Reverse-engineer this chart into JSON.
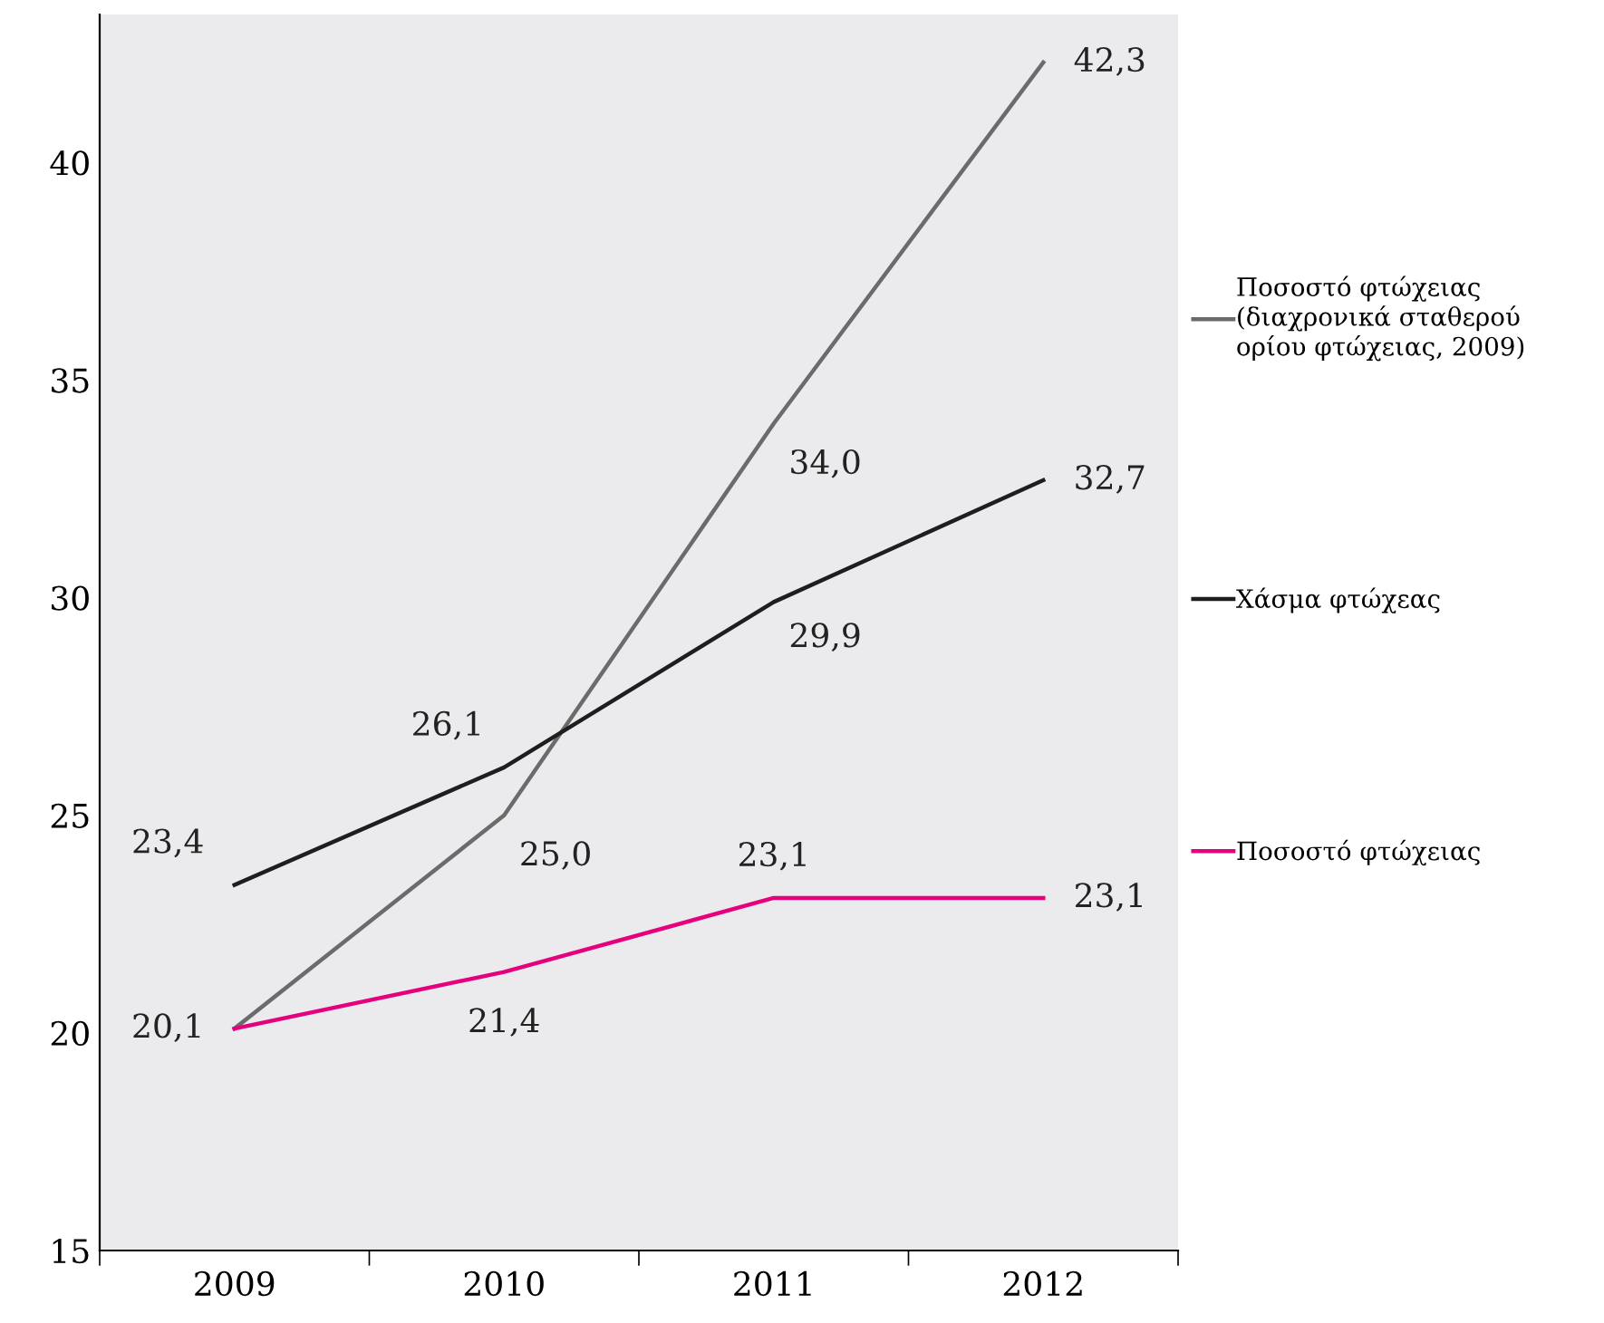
{
  "chart_data": {
    "type": "line",
    "categories": [
      "2009",
      "2010",
      "2011",
      "2012"
    ],
    "series": [
      {
        "name": "Ποσοστό φτώχειας\n(διαχρονικά σταθερού\nορίου φτώχειας, 2009)",
        "color": "#6b6b6b",
        "values": [
          20.1,
          25.0,
          34.0,
          42.3
        ],
        "value_labels": [
          "20,1",
          "25,0",
          "34,0",
          "42,3"
        ]
      },
      {
        "name": "Χάσμα φτώχεας",
        "color": "#1e1e1e",
        "values": [
          23.4,
          26.1,
          29.9,
          32.7
        ],
        "value_labels": [
          "23,4",
          "26,1",
          "29,9",
          "32,7"
        ]
      },
      {
        "name": "Ποσοστό φτώχειας",
        "color": "#e5007d",
        "values": [
          20.1,
          21.4,
          23.1,
          23.1
        ],
        "value_labels": [
          null,
          "21,4",
          "23,1",
          "23,1"
        ]
      }
    ],
    "ylim": [
      15,
      43.4
    ],
    "yticks": [
      15,
      20,
      25,
      30,
      35,
      40
    ],
    "grid": false,
    "legend": "right",
    "marker": "none",
    "line_style": "solid"
  }
}
